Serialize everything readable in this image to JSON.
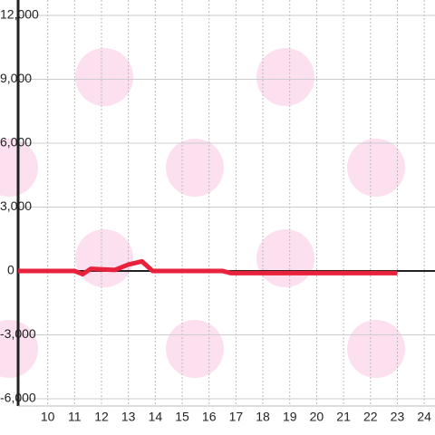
{
  "chart_data": {
    "type": "line",
    "xlim": [
      8.9,
      24.4
    ],
    "xticks": [
      10,
      11,
      12,
      13,
      14,
      15,
      16,
      17,
      18,
      19,
      20,
      21,
      22,
      23,
      24
    ],
    "ylim": [
      -6000,
      12000
    ],
    "yticks": [
      {
        "value": -6000,
        "label": "-6,000"
      },
      {
        "value": -3000,
        "label": "-3,000"
      },
      0,
      {
        "value": 3000,
        "label": "3,000"
      },
      {
        "value": 6000,
        "label": "6,000"
      },
      {
        "value": 9000,
        "label": "9,000"
      },
      {
        "value": 12000,
        "label": "12,000"
      }
    ],
    "grid": true,
    "series": [
      {
        "color": "#e8223c",
        "x": [
          8.9,
          11.0,
          11.3,
          11.6,
          12.5,
          13.0,
          13.5,
          13.9,
          16.5,
          16.8,
          23.0
        ],
        "values": [
          0,
          0,
          -150,
          100,
          50,
          300,
          450,
          0,
          0,
          -100,
          -100
        ]
      }
    ]
  }
}
